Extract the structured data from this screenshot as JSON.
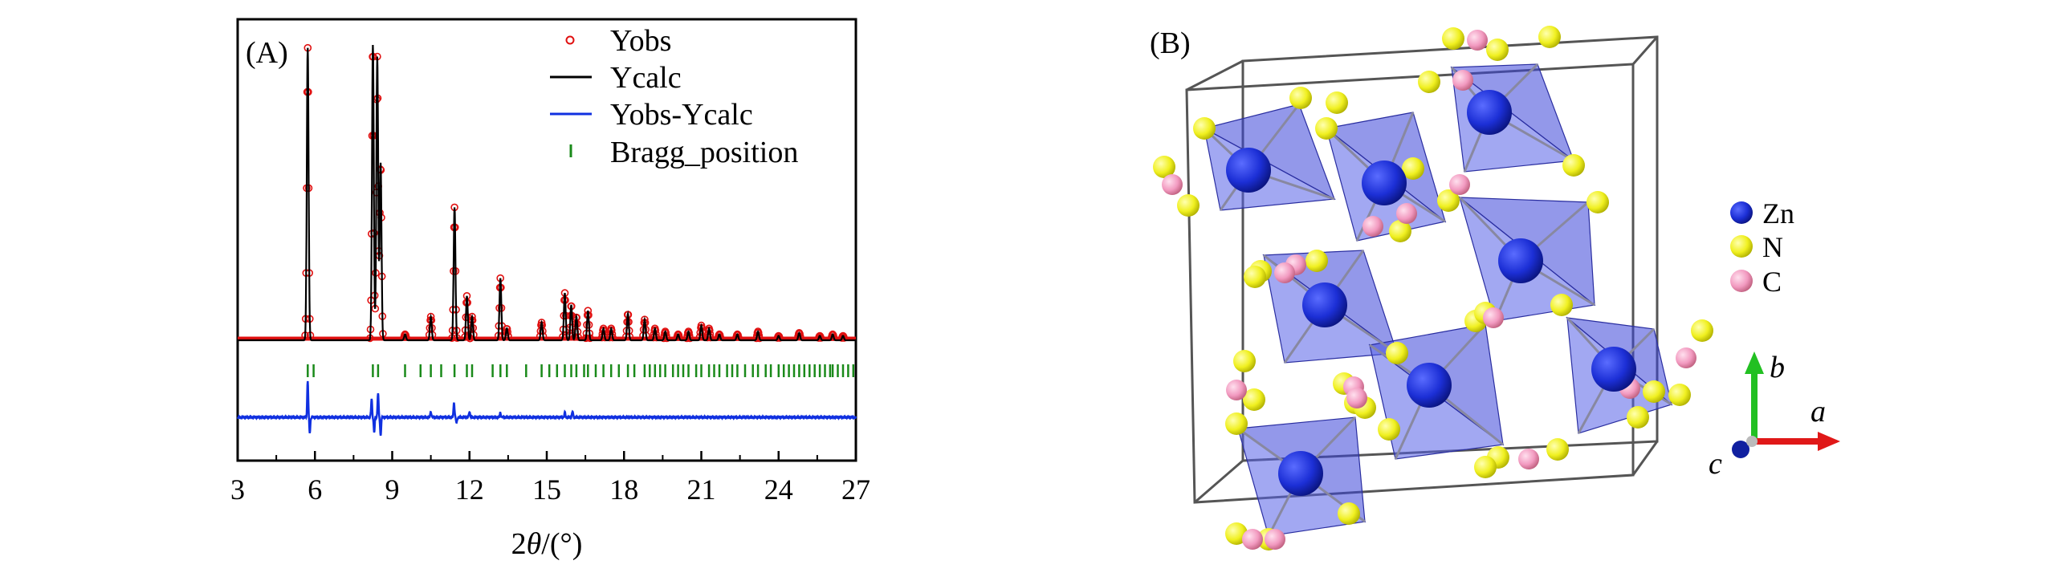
{
  "panel_a": {
    "label": "(A)"
  },
  "panel_b": {
    "label": "(B)"
  },
  "chart_data": {
    "type": "line",
    "title": "",
    "xlabel_main": "2",
    "xlabel_theta": "θ",
    "xlabel_unit": "/(°)",
    "ylabel": "",
    "xlim": [
      3,
      27
    ],
    "ylim": [
      0,
      1
    ],
    "grid": false,
    "legend": {
      "location": "top-right",
      "entries": [
        "Yobs",
        "Ycalc",
        "Yobs-Ycalc",
        "Bragg_position"
      ]
    },
    "xticks": [
      3,
      6,
      9,
      12,
      15,
      18,
      21,
      24,
      27
    ],
    "xtick_labels": [
      "3",
      "6",
      "9",
      "12",
      "15",
      "18",
      "21",
      "24",
      "27"
    ],
    "baseline": 0.27,
    "peaks": [
      {
        "x": 5.72,
        "y": 0.99
      },
      {
        "x": 8.25,
        "y": 1.0
      },
      {
        "x": 8.42,
        "y": 0.96
      },
      {
        "x": 8.55,
        "y": 0.6
      },
      {
        "x": 9.5,
        "y": 0.02
      },
      {
        "x": 10.5,
        "y": 0.08
      },
      {
        "x": 11.42,
        "y": 0.45
      },
      {
        "x": 11.9,
        "y": 0.15
      },
      {
        "x": 12.1,
        "y": 0.08
      },
      {
        "x": 13.2,
        "y": 0.21
      },
      {
        "x": 13.45,
        "y": 0.04
      },
      {
        "x": 14.8,
        "y": 0.06
      },
      {
        "x": 15.7,
        "y": 0.16
      },
      {
        "x": 15.95,
        "y": 0.12
      },
      {
        "x": 16.15,
        "y": 0.08
      },
      {
        "x": 16.6,
        "y": 0.1
      },
      {
        "x": 17.2,
        "y": 0.04
      },
      {
        "x": 17.5,
        "y": 0.04
      },
      {
        "x": 18.15,
        "y": 0.09
      },
      {
        "x": 18.8,
        "y": 0.07
      },
      {
        "x": 19.2,
        "y": 0.04
      },
      {
        "x": 19.6,
        "y": 0.03
      },
      {
        "x": 20.1,
        "y": 0.02
      },
      {
        "x": 20.5,
        "y": 0.03
      },
      {
        "x": 21.0,
        "y": 0.05
      },
      {
        "x": 21.3,
        "y": 0.04
      },
      {
        "x": 21.7,
        "y": 0.02
      },
      {
        "x": 22.4,
        "y": 0.02
      },
      {
        "x": 23.2,
        "y": 0.03
      },
      {
        "x": 24.0,
        "y": 0.015
      },
      {
        "x": 24.8,
        "y": 0.025
      },
      {
        "x": 25.6,
        "y": 0.015
      },
      {
        "x": 26.1,
        "y": 0.02
      },
      {
        "x": 26.5,
        "y": 0.015
      }
    ],
    "bragg_positions": [
      5.72,
      5.95,
      8.25,
      8.45,
      9.5,
      10.1,
      10.5,
      10.9,
      11.42,
      11.9,
      12.1,
      12.9,
      13.2,
      13.45,
      14.2,
      14.8,
      15.1,
      15.4,
      15.7,
      15.95,
      16.15,
      16.45,
      16.6,
      16.9,
      17.2,
      17.5,
      17.8,
      18.15,
      18.4,
      18.8,
      19.0,
      19.2,
      19.4,
      19.6,
      19.9,
      20.1,
      20.3,
      20.5,
      20.8,
      21.0,
      21.3,
      21.5,
      21.7,
      22.0,
      22.2,
      22.4,
      22.7,
      23.0,
      23.2,
      23.5,
      23.7,
      24.0,
      24.2,
      24.4,
      24.6,
      24.8,
      25.0,
      25.2,
      25.4,
      25.6,
      25.8,
      26.0,
      26.1,
      26.3,
      26.5,
      26.7,
      26.9
    ],
    "difference_spikes": [
      {
        "x": 5.72,
        "dy": 0.12
      },
      {
        "x": 5.8,
        "dy": -0.05
      },
      {
        "x": 8.2,
        "dy": 0.06
      },
      {
        "x": 8.3,
        "dy": -0.05
      },
      {
        "x": 8.45,
        "dy": 0.08
      },
      {
        "x": 8.55,
        "dy": -0.06
      },
      {
        "x": 10.5,
        "dy": 0.02
      },
      {
        "x": 11.4,
        "dy": 0.05
      },
      {
        "x": 11.5,
        "dy": -0.02
      },
      {
        "x": 12.0,
        "dy": 0.02
      },
      {
        "x": 13.2,
        "dy": 0.015
      },
      {
        "x": 15.7,
        "dy": 0.015
      },
      {
        "x": 16.0,
        "dy": 0.02
      }
    ]
  },
  "structure": {
    "legend": [
      {
        "label": "Zn",
        "color": "#1c2fd6"
      },
      {
        "label": "N",
        "color": "#f0f020"
      },
      {
        "label": "C",
        "color": "#f29ac0"
      }
    ],
    "axes": {
      "a": "a",
      "b": "b",
      "c": "c"
    }
  }
}
